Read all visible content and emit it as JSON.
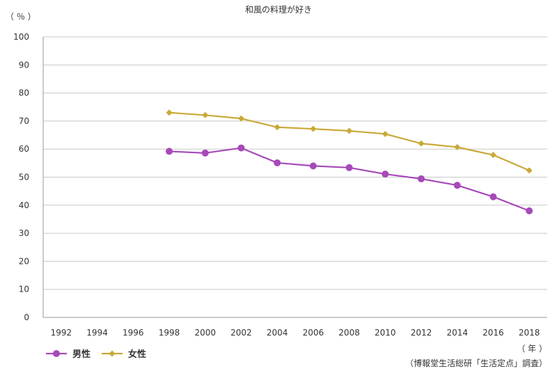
{
  "chart_data": {
    "type": "line",
    "title": "和風の料理が好き",
    "ylabel": "（ ％ ）",
    "xlabel": "（ 年 ）",
    "source": "（博報堂生活総研「生活定点」調査）",
    "ylim": [
      0,
      100
    ],
    "yticks": [
      0,
      10,
      20,
      30,
      40,
      50,
      60,
      70,
      80,
      90,
      100
    ],
    "grid": true,
    "legend_position": "bottom-left",
    "categories": [
      "1992",
      "1994",
      "1996",
      "1998",
      "2000",
      "2002",
      "2004",
      "2006",
      "2008",
      "2010",
      "2012",
      "2014",
      "2016",
      "2018"
    ],
    "series": [
      {
        "name": "男性",
        "color": "#a64ab8",
        "marker": "circle",
        "values": [
          null,
          null,
          null,
          59.2,
          58.6,
          60.4,
          55.1,
          54.0,
          53.4,
          51.1,
          49.4,
          47.1,
          43.0,
          38.0
        ]
      },
      {
        "name": "女性",
        "color": "#c9a937",
        "marker": "diamond",
        "values": [
          null,
          null,
          null,
          73.0,
          72.1,
          70.9,
          67.8,
          67.2,
          66.5,
          65.4,
          62.0,
          60.7,
          57.9,
          52.4
        ]
      }
    ]
  }
}
